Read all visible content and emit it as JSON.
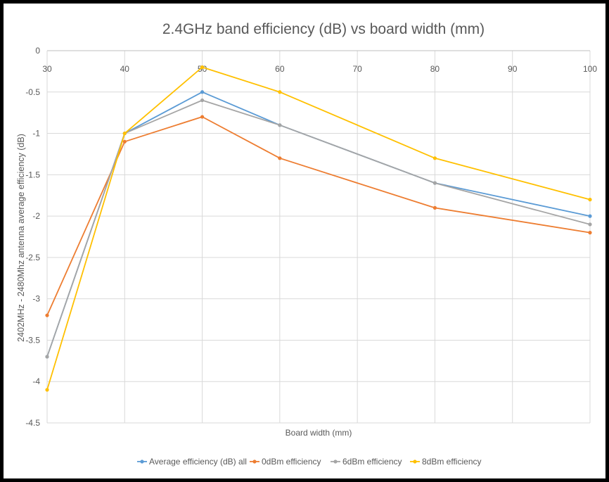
{
  "chart_data": {
    "type": "line",
    "title": "2.4GHz band efficiency (dB) vs board width (mm)",
    "xlabel": "Board width (mm)",
    "ylabel": "2402MHz - 2480Mhz antenna average efficiency (dB)",
    "categories": [
      "30",
      "40",
      "50",
      "60",
      "70",
      "80",
      "90",
      "100"
    ],
    "ylim": [
      -4.5,
      0
    ],
    "ytick_labels": [
      "0",
      "-0.5",
      "-1",
      "-1.5",
      "-2",
      "-2.5",
      "-3",
      "-3.5",
      "-4",
      "-4.5"
    ],
    "ytick_values": [
      0,
      -0.5,
      -1,
      -1.5,
      -2,
      -2.5,
      -3,
      -3.5,
      -4,
      -4.5
    ],
    "grid": true,
    "legend_position": "bottom",
    "series": [
      {
        "name": "Average efficiency (dB) all",
        "color": "#5B9BD5",
        "values": [
          -3.7,
          -1.0,
          -0.5,
          -0.9,
          null,
          -1.6,
          null,
          -2.0
        ]
      },
      {
        "name": "0dBm efficiency",
        "color": "#ED7D31",
        "values": [
          -3.2,
          -1.1,
          -0.8,
          -1.3,
          null,
          -1.9,
          null,
          -2.2
        ]
      },
      {
        "name": "6dBm efficiency",
        "color": "#A5A5A5",
        "values": [
          -3.7,
          -1.0,
          -0.6,
          -0.9,
          null,
          -1.6,
          null,
          -2.1
        ]
      },
      {
        "name": "8dBm efficiency",
        "color": "#FFC000",
        "values": [
          -4.1,
          -1.0,
          -0.2,
          -0.5,
          null,
          -1.3,
          null,
          -1.8
        ]
      }
    ]
  }
}
